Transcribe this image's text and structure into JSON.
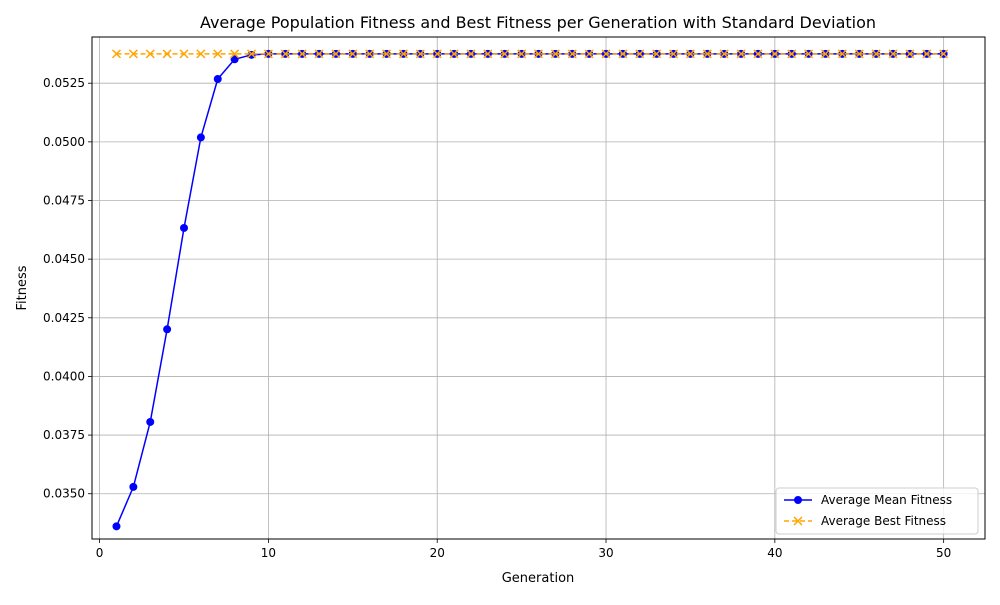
{
  "chart_data": {
    "type": "line",
    "title": "Average Population Fitness and Best Fitness per Generation with Standard Deviation",
    "xlabel": "Generation",
    "ylabel": "Fitness",
    "xlim": [
      -0.45,
      52.45
    ],
    "ylim": [
      0.03307,
      0.05447
    ],
    "xticks": [
      0,
      10,
      20,
      30,
      40,
      50
    ],
    "yticks": [
      0.035,
      0.0375,
      0.04,
      0.0425,
      0.045,
      0.0475,
      0.05,
      0.0525
    ],
    "ytick_labels": [
      "0.0350",
      "0.0375",
      "0.0400",
      "0.0425",
      "0.0450",
      "0.0475",
      "0.0500",
      "0.0525"
    ],
    "grid": true,
    "legend_position": "lower-right",
    "x": [
      1,
      2,
      3,
      4,
      5,
      6,
      7,
      8,
      9,
      10,
      11,
      12,
      13,
      14,
      15,
      16,
      17,
      18,
      19,
      20,
      21,
      22,
      23,
      24,
      25,
      26,
      27,
      28,
      29,
      30,
      31,
      32,
      33,
      34,
      35,
      36,
      37,
      38,
      39,
      40,
      41,
      42,
      43,
      44,
      45,
      46,
      47,
      48,
      49,
      50
    ],
    "series": [
      {
        "name": "Average Mean Fitness",
        "color": "#0000ff",
        "marker": "circle",
        "linestyle": "solid",
        "values": [
          0.03361,
          0.03529,
          0.03806,
          0.04201,
          0.04633,
          0.05019,
          0.05268,
          0.05352,
          0.05371,
          0.05375,
          0.05375,
          0.05375,
          0.05375,
          0.05375,
          0.05375,
          0.05375,
          0.05375,
          0.05375,
          0.05375,
          0.05375,
          0.05375,
          0.05375,
          0.05375,
          0.05375,
          0.05375,
          0.05375,
          0.05375,
          0.05375,
          0.05375,
          0.05375,
          0.05375,
          0.05375,
          0.05375,
          0.05375,
          0.05375,
          0.05375,
          0.05375,
          0.05375,
          0.05375,
          0.05375,
          0.05375,
          0.05375,
          0.05375,
          0.05375,
          0.05375,
          0.05375,
          0.05375,
          0.05375,
          0.05375,
          0.05375
        ]
      },
      {
        "name": "Average Best Fitness",
        "color": "#ffa500",
        "marker": "x",
        "linestyle": "dashed",
        "values": [
          0.05375,
          0.05375,
          0.05375,
          0.05375,
          0.05375,
          0.05375,
          0.05375,
          0.05375,
          0.05375,
          0.05375,
          0.05375,
          0.05375,
          0.05375,
          0.05375,
          0.05375,
          0.05375,
          0.05375,
          0.05375,
          0.05375,
          0.05375,
          0.05375,
          0.05375,
          0.05375,
          0.05375,
          0.05375,
          0.05375,
          0.05375,
          0.05375,
          0.05375,
          0.05375,
          0.05375,
          0.05375,
          0.05375,
          0.05375,
          0.05375,
          0.05375,
          0.05375,
          0.05375,
          0.05375,
          0.05375,
          0.05375,
          0.05375,
          0.05375,
          0.05375,
          0.05375,
          0.05375,
          0.05375,
          0.05375,
          0.05375,
          0.05375
        ]
      }
    ]
  }
}
